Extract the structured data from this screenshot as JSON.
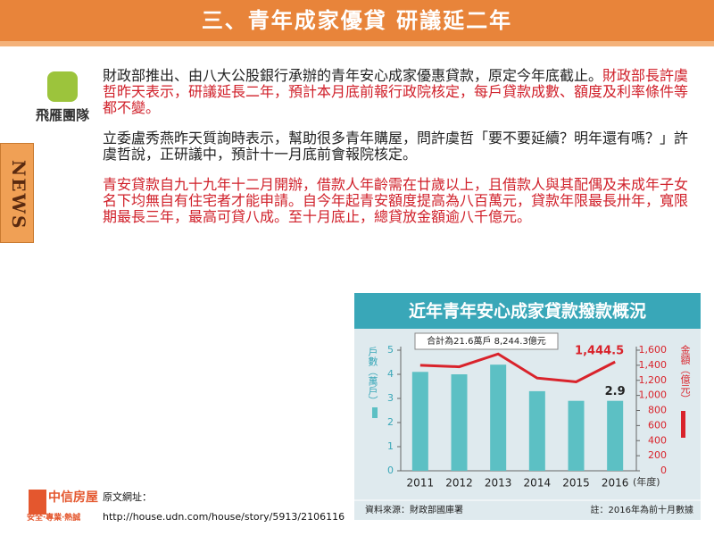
{
  "header": {
    "title": "三、青年成家優貸 研議延二年"
  },
  "logo": {
    "name": "飛雁團隊"
  },
  "side_tab": "NEWS",
  "paragraphs": [
    [
      {
        "text": "財政部推出、由八大公股銀行承辦的青年安心成家優惠貸款，原定今年底截止。",
        "color": "#222222"
      },
      {
        "text": "財政部長許虞哲昨天表示，研議延長二年，預計本月底前報行政院核定，每戶貸款成數、額度及利率條件等都不變。",
        "color": "#d0202a"
      }
    ],
    [
      {
        "text": "立委盧秀燕昨天質詢時表示，幫助很多青年購屋，問許虞哲「要不要延續？明年還有嗎？」許虞哲說，正研議中，預計十一月底前會報院核定。",
        "color": "#222222"
      }
    ],
    [
      {
        "text": "青安貸款自九十九年十二月開辦，借款人年齡需在廿歲以上，且借款人與其配偶及未成年子女名下均無自有住宅者才能申請。自今年起青安額度提高為八百萬元，貸款年限最長卅年，寬限期最長三年，最高可貸八成。至十月底止，總貸放金額逾八千億元。",
        "color": "#d0202a"
      }
    ]
  ],
  "source": {
    "label": "原文網址：",
    "url": "http://house.udn.com/house/story/5913/2106116"
  },
  "footer_logo": {
    "name": "中信房屋",
    "slogan": "安全‧專業‧熱誠"
  },
  "chart_data": {
    "type": "bar-line",
    "title": "近年青年安心成家貸款撥款概況",
    "annotation": "合計為21.6萬戶 8,244.3億元",
    "ylabel": "戶數（萬戶）",
    "y2label": "金額（億元）",
    "xlabel": "(年度)",
    "source_note": "資料來源：財政部國庫署",
    "footnote": "註：2016年為前十月數據",
    "categories": [
      "2011",
      "2012",
      "2013",
      "2014",
      "2015",
      "2016"
    ],
    "ylim": [
      0,
      5
    ],
    "yticks": [
      0,
      1,
      2,
      3,
      4,
      5
    ],
    "y2lim": [
      0,
      1600
    ],
    "y2ticks": [
      0,
      200,
      400,
      600,
      800,
      {
        "value": 1000,
        "label": "1,000"
      },
      {
        "value": 1200,
        "label": "1,200"
      },
      {
        "value": 1400,
        "label": "1,400"
      },
      {
        "value": 1600,
        "label": "1,600"
      }
    ],
    "series": [
      {
        "name": "戶數",
        "type": "bar",
        "color": "#5cc0c4",
        "values": [
          4.1,
          4.0,
          4.4,
          3.3,
          2.9,
          2.9
        ],
        "value_labels": [
          null,
          null,
          null,
          null,
          null,
          "2.9"
        ]
      },
      {
        "name": "金額",
        "type": "line",
        "axis": "y2",
        "color": "#d9232b",
        "values": [
          1400,
          1380,
          1550,
          1230,
          1180,
          1444.5
        ],
        "value_labels": [
          null,
          null,
          null,
          null,
          null,
          "1,444.5"
        ]
      }
    ]
  }
}
